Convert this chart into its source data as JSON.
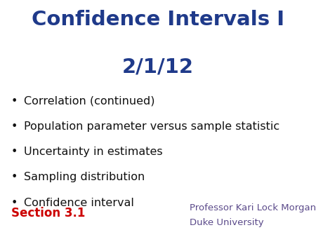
{
  "title_line1": "Confidence Intervals I",
  "title_line2": "2/1/12",
  "title_color": "#1F3A8A",
  "bullet_items": [
    "Correlation (continued)",
    "Population parameter versus sample statistic",
    "Uncertainty in estimates",
    "Sampling distribution",
    "Confidence interval"
  ],
  "bullet_color": "#111111",
  "bullet_fontsize": 11.5,
  "section_text": "Section 3.1",
  "section_color": "#CC0000",
  "section_fontsize": 12,
  "professor_line1": "Professor Kari Lock Morgan",
  "professor_line2": "Duke University",
  "professor_color": "#5B4A8A",
  "professor_fontsize": 9.5,
  "background_color": "#FFFFFF",
  "title_fontsize": 21,
  "title_line2_fontsize": 21
}
